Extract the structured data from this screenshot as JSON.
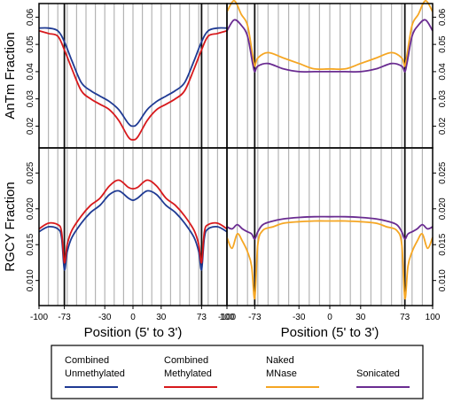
{
  "chart_data": [
    {
      "id": "p1",
      "type": "line",
      "xlabel": "",
      "ylabel": "AnTm Fraction",
      "ylim": [
        0.012,
        0.065
      ],
      "yticks": [
        "0.02",
        "0.03",
        "0.04",
        "0.05",
        "0.06"
      ],
      "xlim": [
        -100,
        100
      ],
      "series": [
        {
          "key": "unmeth",
          "x": [
            -100,
            -90,
            -80,
            -73,
            -65,
            -55,
            -45,
            -35,
            -25,
            -15,
            -5,
            0,
            5,
            15,
            25,
            35,
            45,
            55,
            65,
            73,
            80,
            90,
            100
          ],
          "y": [
            0.056,
            0.056,
            0.055,
            0.051,
            0.044,
            0.036,
            0.033,
            0.031,
            0.029,
            0.026,
            0.021,
            0.02,
            0.021,
            0.026,
            0.029,
            0.031,
            0.033,
            0.036,
            0.044,
            0.051,
            0.055,
            0.056,
            0.056
          ]
        },
        {
          "key": "meth",
          "x": [
            -100,
            -90,
            -80,
            -73,
            -65,
            -55,
            -45,
            -35,
            -25,
            -15,
            -5,
            0,
            5,
            15,
            25,
            35,
            45,
            55,
            65,
            73,
            80,
            90,
            100
          ],
          "y": [
            0.055,
            0.054,
            0.053,
            0.048,
            0.041,
            0.033,
            0.03,
            0.028,
            0.026,
            0.022,
            0.016,
            0.015,
            0.016,
            0.022,
            0.026,
            0.028,
            0.03,
            0.033,
            0.041,
            0.048,
            0.053,
            0.054,
            0.055
          ]
        }
      ]
    },
    {
      "id": "p2",
      "type": "line",
      "xlabel": "",
      "ylabel": "",
      "ylim": [
        0.012,
        0.065
      ],
      "yticks": [
        "0.02",
        "0.03",
        "0.04",
        "0.05",
        "0.06"
      ],
      "xlim": [
        -100,
        100
      ],
      "series": [
        {
          "key": "naked",
          "x": [
            -100,
            -93,
            -86,
            -80,
            -75,
            -73,
            -70,
            -60,
            -45,
            -30,
            -15,
            0,
            15,
            30,
            45,
            60,
            70,
            73,
            75,
            80,
            86,
            93,
            100
          ],
          "y": [
            0.062,
            0.066,
            0.061,
            0.057,
            0.046,
            0.042,
            0.045,
            0.047,
            0.045,
            0.043,
            0.041,
            0.041,
            0.041,
            0.043,
            0.045,
            0.047,
            0.045,
            0.042,
            0.046,
            0.057,
            0.061,
            0.066,
            0.062
          ]
        },
        {
          "key": "sonic",
          "x": [
            -100,
            -93,
            -86,
            -80,
            -75,
            -73,
            -70,
            -60,
            -45,
            -30,
            -15,
            0,
            15,
            30,
            45,
            60,
            70,
            73,
            75,
            80,
            86,
            93,
            100
          ],
          "y": [
            0.055,
            0.059,
            0.057,
            0.053,
            0.043,
            0.04,
            0.042,
            0.043,
            0.041,
            0.04,
            0.04,
            0.04,
            0.04,
            0.04,
            0.041,
            0.043,
            0.042,
            0.04,
            0.043,
            0.053,
            0.057,
            0.059,
            0.055
          ]
        }
      ]
    },
    {
      "id": "p3",
      "type": "line",
      "xlabel": "Position (5' to 3')",
      "ylabel": "RGCY Fraction",
      "ylim": [
        0.0065,
        0.0285
      ],
      "yticks": [
        "0.010",
        "0.015",
        "0.020",
        "0.025"
      ],
      "xlim": [
        -100,
        100
      ],
      "xticks": [
        "-100",
        "-73",
        "-30",
        "0",
        "30",
        "73",
        "100"
      ],
      "series": [
        {
          "key": "unmeth",
          "x": [
            -100,
            -90,
            -80,
            -76,
            -73,
            -70,
            -65,
            -55,
            -45,
            -35,
            -25,
            -15,
            -5,
            0,
            5,
            15,
            25,
            35,
            45,
            55,
            65,
            70,
            73,
            76,
            80,
            90,
            100
          ],
          "y": [
            0.0168,
            0.0175,
            0.0172,
            0.016,
            0.0115,
            0.014,
            0.016,
            0.018,
            0.0195,
            0.0205,
            0.022,
            0.0225,
            0.0215,
            0.0212,
            0.0215,
            0.0225,
            0.022,
            0.0205,
            0.0195,
            0.018,
            0.016,
            0.014,
            0.0115,
            0.016,
            0.0172,
            0.0175,
            0.0168
          ]
        },
        {
          "key": "meth",
          "x": [
            -100,
            -90,
            -80,
            -76,
            -73,
            -70,
            -65,
            -55,
            -45,
            -35,
            -25,
            -15,
            -5,
            0,
            5,
            15,
            25,
            35,
            45,
            55,
            65,
            70,
            73,
            76,
            80,
            90,
            100
          ],
          "y": [
            0.0172,
            0.018,
            0.0178,
            0.0168,
            0.0125,
            0.015,
            0.017,
            0.019,
            0.0205,
            0.0215,
            0.0232,
            0.024,
            0.023,
            0.0228,
            0.023,
            0.024,
            0.0232,
            0.0215,
            0.0205,
            0.019,
            0.017,
            0.015,
            0.0125,
            0.0168,
            0.0178,
            0.018,
            0.0172
          ]
        }
      ]
    },
    {
      "id": "p4",
      "type": "line",
      "xlabel": "Position (5' to 3')",
      "ylabel": "",
      "ylim": [
        0.0065,
        0.0285
      ],
      "yticks": [
        "0.010",
        "0.015",
        "0.020",
        "0.025"
      ],
      "xlim": [
        -100,
        100
      ],
      "xticks": [
        "-100",
        "-73",
        "-30",
        "0",
        "30",
        "73",
        "100"
      ],
      "series": [
        {
          "key": "naked",
          "x": [
            -100,
            -95,
            -90,
            -85,
            -80,
            -76,
            -73,
            -70,
            -65,
            -55,
            -45,
            -30,
            -15,
            0,
            15,
            30,
            45,
            55,
            65,
            70,
            73,
            76,
            80,
            85,
            90,
            95,
            100
          ],
          "y": [
            0.016,
            0.0145,
            0.0165,
            0.0155,
            0.014,
            0.012,
            0.0075,
            0.015,
            0.017,
            0.0175,
            0.018,
            0.0182,
            0.0183,
            0.0183,
            0.0183,
            0.0182,
            0.018,
            0.0175,
            0.017,
            0.015,
            0.0075,
            0.012,
            0.014,
            0.0155,
            0.0165,
            0.0145,
            0.016
          ]
        },
        {
          "key": "sonic",
          "x": [
            -100,
            -95,
            -90,
            -85,
            -80,
            -76,
            -73,
            -70,
            -65,
            -55,
            -45,
            -30,
            -15,
            0,
            15,
            30,
            45,
            55,
            65,
            70,
            73,
            76,
            80,
            85,
            90,
            95,
            100
          ],
          "y": [
            0.0175,
            0.0172,
            0.0178,
            0.0172,
            0.0168,
            0.0165,
            0.0158,
            0.0168,
            0.0178,
            0.0183,
            0.0186,
            0.0188,
            0.0189,
            0.0189,
            0.0189,
            0.0188,
            0.0186,
            0.0183,
            0.0178,
            0.0168,
            0.0158,
            0.0165,
            0.0168,
            0.0172,
            0.0178,
            0.0172,
            0.0175
          ]
        }
      ]
    }
  ],
  "series_styles": {
    "unmeth": {
      "color": "#1f3a93",
      "label_line1": "Combined",
      "label_line2": "Unmethylated"
    },
    "meth": {
      "color": "#d7191c",
      "label_line1": "Combined",
      "label_line2": "Methylated"
    },
    "naked": {
      "color": "#f5a623",
      "label_line1": "Naked",
      "label_line2": "MNase"
    },
    "sonic": {
      "color": "#6a2c91",
      "label_line1": "",
      "label_line2": "Sonicated"
    }
  },
  "legend_order": [
    "unmeth",
    "meth",
    "naked",
    "sonic"
  ],
  "markers": [
    -73,
    73
  ]
}
